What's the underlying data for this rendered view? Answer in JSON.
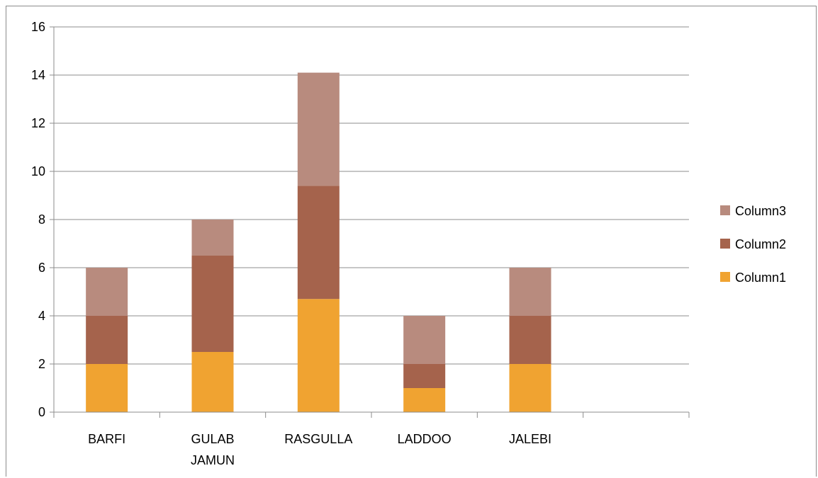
{
  "chart_data": {
    "type": "bar",
    "stacked": true,
    "categories": [
      [
        "BARFI"
      ],
      [
        "GULAB",
        "JAMUN"
      ],
      [
        "RASGULLA"
      ],
      [
        "LADDOO"
      ],
      [
        "JALEBI"
      ],
      [
        ""
      ]
    ],
    "series": [
      {
        "name": "Column1",
        "color": "#F0A331",
        "values": [
          2,
          2.5,
          4.7,
          1,
          2,
          null
        ]
      },
      {
        "name": "Column2",
        "color": "#A5634C",
        "values": [
          2,
          4,
          4.7,
          1,
          2,
          null
        ]
      },
      {
        "name": "Column3",
        "color": "#B88B7E",
        "values": [
          2,
          1.5,
          4.7,
          2,
          2,
          null
        ]
      }
    ],
    "ylim": [
      0,
      16
    ],
    "yticks": [
      0,
      2,
      4,
      6,
      8,
      10,
      12,
      14,
      16
    ],
    "grid": true,
    "legend_position": "right",
    "legend_order": [
      "Column3",
      "Column2",
      "Column1"
    ],
    "title": "",
    "xlabel": "",
    "ylabel": ""
  }
}
